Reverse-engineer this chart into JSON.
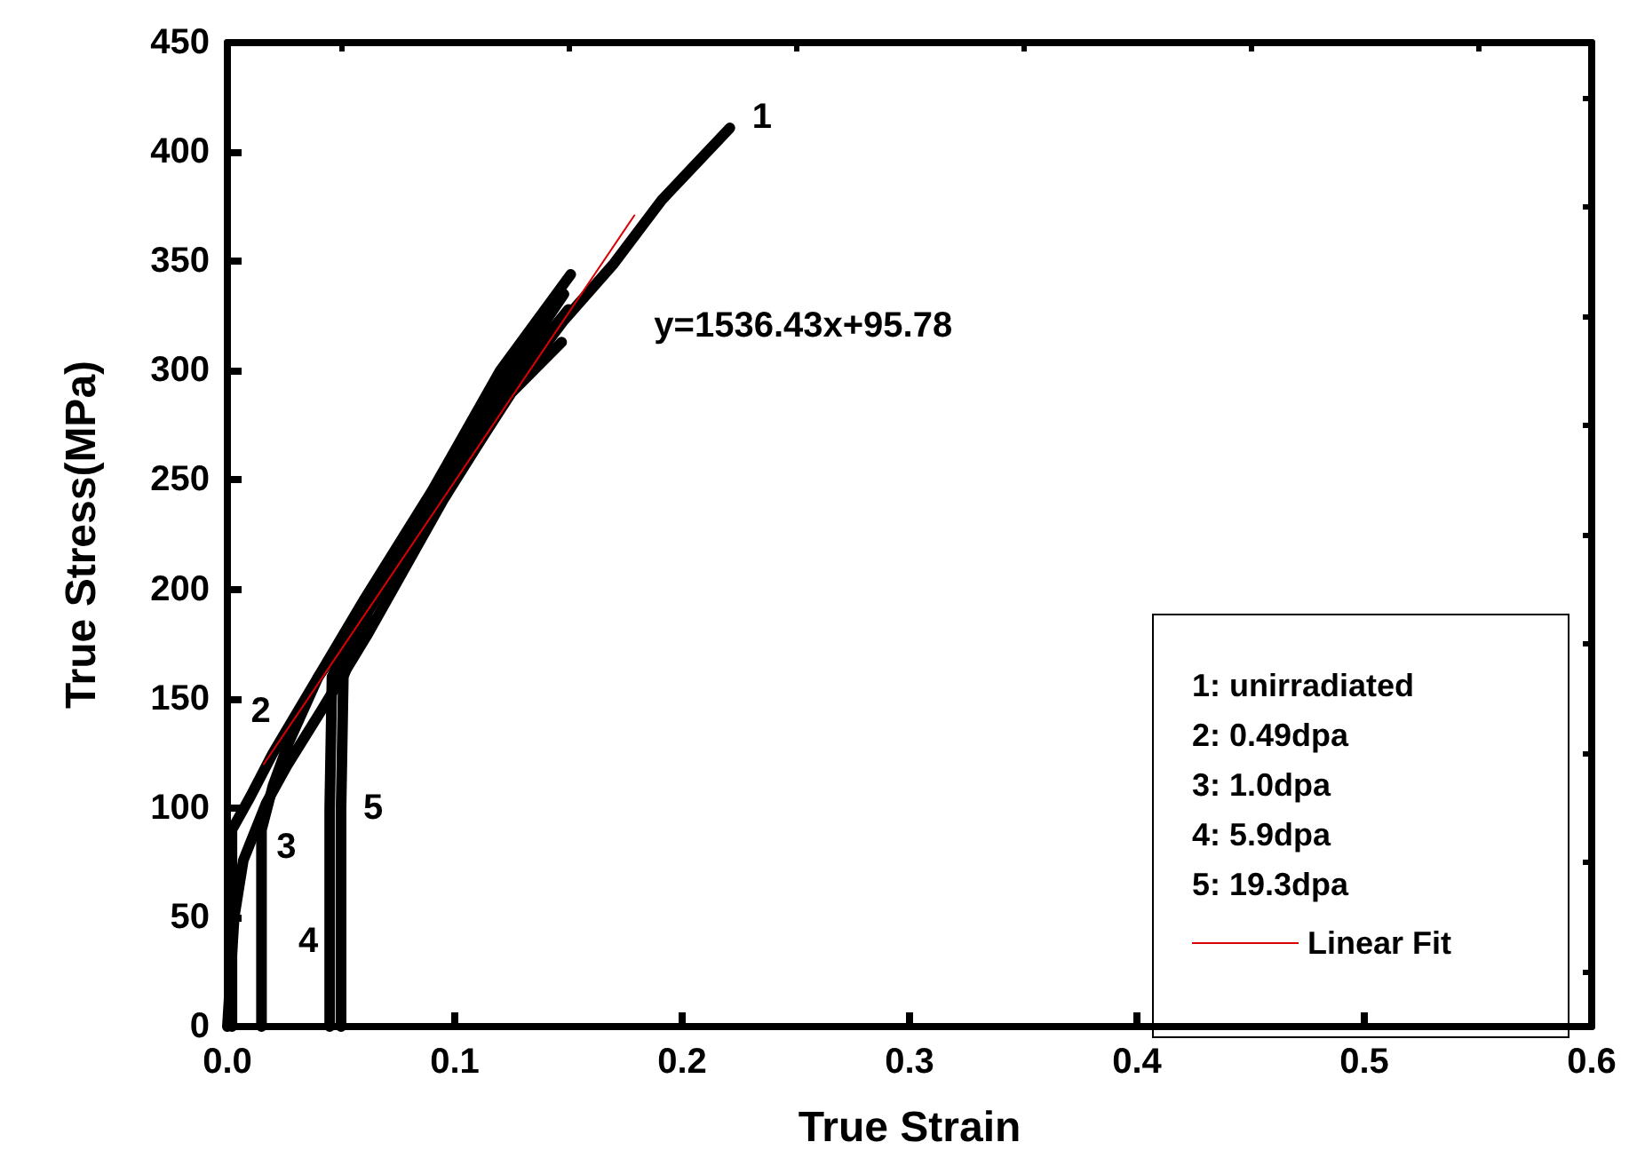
{
  "chart_data": {
    "type": "line",
    "xlabel": "True Strain",
    "ylabel": "True Stress(MPa)",
    "xlim": [
      0,
      0.6
    ],
    "ylim": [
      0,
      450
    ],
    "xticks": [
      {
        "value": 0,
        "label": "0.0"
      },
      0.1,
      0.2,
      0.3,
      0.4,
      0.5,
      0.6
    ],
    "yticks": [
      0,
      50,
      100,
      150,
      200,
      250,
      300,
      350,
      400,
      450
    ],
    "grid": false,
    "legend": "bottom right",
    "marker": "none",
    "line_style": "solid",
    "series": [
      {
        "name": "1",
        "color": "#000000",
        "x": [
          0,
          0.003,
          0.007,
          0.017,
          0.026,
          0.041,
          0.062,
          0.095,
          0.127,
          0.148,
          0.17,
          0.191,
          0.221
        ],
        "values": [
          0,
          50,
          76,
          102,
          119,
          144,
          180,
          241,
          294,
          323,
          349,
          378,
          411
        ]
      },
      {
        "name": "2",
        "color": "#000000",
        "x": [
          0.002,
          0.002,
          0.01,
          0.02,
          0.04,
          0.07,
          0.1,
          0.125,
          0.147
        ],
        "values": [
          0,
          90,
          105,
          125,
          160,
          205,
          250,
          290,
          313
        ]
      },
      {
        "name": "3",
        "color": "#000000",
        "x": [
          0.015,
          0.015,
          0.02,
          0.027,
          0.04,
          0.06,
          0.09,
          0.12,
          0.151
        ],
        "values": [
          0,
          90,
          110,
          130,
          160,
          195,
          245,
          300,
          344
        ]
      },
      {
        "name": "4",
        "color": "#000000",
        "x": [
          0.045,
          0.045,
          0.046,
          0.06,
          0.09,
          0.12,
          0.148
        ],
        "values": [
          0,
          100,
          160,
          190,
          240,
          292,
          335
        ]
      },
      {
        "name": "5",
        "color": "#000000",
        "x": [
          0.05,
          0.05,
          0.051,
          0.062,
          0.09,
          0.12,
          0.15
        ],
        "values": [
          0,
          100,
          160,
          190,
          238,
          290,
          328
        ]
      },
      {
        "name": "Linear Fit",
        "color": "#dd0000",
        "x": [
          0.016,
          0.179
        ],
        "values": [
          120,
          371
        ]
      }
    ],
    "annotations": [
      "y=1536.43x+95.78",
      "1: unirradiated",
      "2: 0.49dpa",
      "3: 1.0dpa",
      "4: 5.9dpa",
      "5: 19.3dpa"
    ]
  }
}
